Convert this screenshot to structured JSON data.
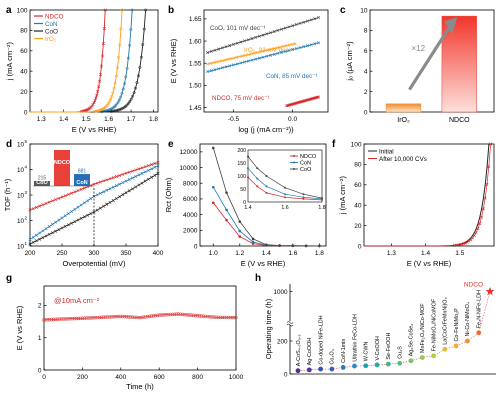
{
  "panels": {
    "a": {
      "letter": "a"
    },
    "b": {
      "letter": "b"
    },
    "c": {
      "letter": "c"
    },
    "d": {
      "letter": "d"
    },
    "e": {
      "letter": "e"
    },
    "f": {
      "letter": "f"
    },
    "g": {
      "letter": "g"
    },
    "h": {
      "letter": "h"
    }
  },
  "chart_data": [
    {
      "id": "a",
      "type": "line",
      "xlabel": "E (V vs RHE)",
      "ylabel": "j (mA cm⁻²)",
      "xlim": [
        1.25,
        1.82
      ],
      "ylim": [
        0,
        100
      ],
      "xticks": [
        1.3,
        1.4,
        1.5,
        1.6,
        1.7,
        1.8
      ],
      "yticks": [
        0,
        20,
        40,
        60,
        80,
        100
      ],
      "legend": {
        "position": "top-left",
        "entries": [
          "NDCO",
          "CoN",
          "CoO",
          "IrO₂"
        ]
      },
      "series": [
        {
          "name": "NDCO",
          "color": "#d62728",
          "onset": 1.44,
          "x100": 1.585
        },
        {
          "name": "CoN",
          "color": "#1f77b4",
          "onset": 1.52,
          "x100": 1.705
        },
        {
          "name": "CoO",
          "color": "#222222",
          "onset": 1.55,
          "x100": 1.765
        },
        {
          "name": "IrO₂",
          "color": "#ff9f1c",
          "onset": 1.49,
          "x100": 1.66
        }
      ]
    },
    {
      "id": "b",
      "type": "line",
      "xlabel": "log (j (mA cm⁻²))",
      "ylabel": "E (V vs RHE)",
      "xlim": [
        -0.75,
        0.3
      ],
      "ylim": [
        1.44,
        1.67
      ],
      "xticks": [
        -0.5,
        0.0
      ],
      "yticks": [
        1.45,
        1.5,
        1.55,
        1.6,
        1.65
      ],
      "series": [
        {
          "name": "CoO",
          "label": "CoO, 101 mV dec⁻¹",
          "color": "#444444",
          "x": [
            -0.72,
            0.22
          ],
          "y": [
            1.574,
            1.653
          ]
        },
        {
          "name": "IrO₂",
          "label": "IrO₂, 93 mV dec⁻¹",
          "color": "#ff9f1c",
          "x": [
            -0.72,
            0.02
          ],
          "y": [
            1.548,
            1.594
          ]
        },
        {
          "name": "CoN",
          "label": "CoN, 85 mV dec⁻¹",
          "color": "#1f77b4",
          "x": [
            -0.72,
            0.22
          ],
          "y": [
            1.531,
            1.596
          ]
        },
        {
          "name": "NDCO",
          "label": "NDCO, 75 mV dec⁻¹",
          "color": "#d62728",
          "x": [
            -0.05,
            0.22
          ],
          "y": [
            1.454,
            1.474
          ]
        }
      ]
    },
    {
      "id": "c",
      "type": "bar",
      "ylabel": "j₀ (μA cm⁻²)",
      "categories": [
        "IrO₂",
        "NDCO"
      ],
      "values": [
        0.8,
        9.4
      ],
      "ylim": [
        0,
        10
      ],
      "yticks": [
        0,
        2,
        4,
        6,
        8,
        10
      ],
      "annotation": "×12"
    },
    {
      "id": "d",
      "type": "line",
      "xlabel": "Overpotential (mV)",
      "ylabel": "TOF (h⁻¹)",
      "xlim": [
        200,
        400
      ],
      "xticks": [
        200,
        250,
        300,
        350,
        400
      ],
      "yscale": "log",
      "ylim": [
        10,
        100000
      ],
      "ytick_exponents": [
        "1",
        "2",
        "3",
        "4",
        "5"
      ],
      "marker_x": 300,
      "inset": {
        "categories": [
          "CoO",
          "NDCO",
          "CoN"
        ],
        "values": [
          215,
          2654,
          881
        ],
        "colors": [
          "#5a5a5a",
          "#e8413a",
          "#2a6ebb"
        ]
      },
      "series": [
        {
          "name": "NDCO",
          "color": "#d62728",
          "x": [
            200,
            300,
            400
          ],
          "y": [
            260,
            2654,
            19000
          ]
        },
        {
          "name": "CoN",
          "color": "#1f77b4",
          "x": [
            200,
            300,
            400
          ],
          "y": [
            18,
            881,
            14000
          ]
        },
        {
          "name": "CoO",
          "color": "#222222",
          "x": [
            200,
            300,
            400
          ],
          "y": [
            12,
            215,
            7000
          ]
        }
      ]
    },
    {
      "id": "e",
      "type": "line",
      "xlabel": "E (V vs RHE)",
      "ylabel": "Rct (Ohm)",
      "xlim": [
        0.9,
        1.85
      ],
      "ylim": [
        0,
        13000
      ],
      "xticks": [
        1.0,
        1.2,
        1.4,
        1.6,
        1.8
      ],
      "yticks": [
        0,
        2000,
        4000,
        6000,
        8000,
        10000,
        12000
      ],
      "legend": {
        "position": "inset",
        "entries": [
          "NDCO",
          "CoN",
          "CoO"
        ]
      },
      "series": [
        {
          "name": "NDCO",
          "color": "#d62728",
          "x": [
            1.0,
            1.1,
            1.2,
            1.3,
            1.4,
            1.5,
            1.6,
            1.7,
            1.8
          ],
          "y": [
            5500,
            3300,
            1200,
            300,
            60,
            25,
            15,
            10,
            8
          ]
        },
        {
          "name": "CoN",
          "color": "#1f77b4",
          "x": [
            1.0,
            1.1,
            1.2,
            1.3,
            1.4,
            1.5,
            1.6,
            1.7,
            1.8
          ],
          "y": [
            7500,
            4600,
            1900,
            500,
            110,
            45,
            25,
            15,
            10
          ]
        },
        {
          "name": "CoO",
          "color": "#444444",
          "x": [
            1.0,
            1.1,
            1.2,
            1.3,
            1.4,
            1.5,
            1.6,
            1.7,
            1.8
          ],
          "y": [
            12500,
            6800,
            3100,
            900,
            160,
            70,
            35,
            20,
            12
          ]
        }
      ],
      "inset": {
        "xlim": [
          1.4,
          1.8
        ],
        "ylim": [
          0,
          200
        ],
        "xticks": [
          1.4,
          1.6,
          1.8
        ],
        "yticks": [
          0,
          50,
          100,
          150,
          200
        ],
        "series": [
          {
            "name": "NDCO",
            "color": "#d62728",
            "x": [
              1.4,
              1.45,
              1.5,
              1.6,
              1.7,
              1.8
            ],
            "y": [
              95,
              60,
              35,
              18,
              12,
              8
            ]
          },
          {
            "name": "CoN",
            "color": "#1f77b4",
            "x": [
              1.4,
              1.45,
              1.5,
              1.6,
              1.7,
              1.8
            ],
            "y": [
              130,
              90,
              60,
              30,
              18,
              12
            ]
          },
          {
            "name": "CoO",
            "color": "#444444",
            "x": [
              1.4,
              1.45,
              1.5,
              1.6,
              1.7,
              1.8
            ],
            "y": [
              175,
              130,
              100,
              55,
              30,
              15
            ]
          }
        ]
      }
    },
    {
      "id": "f",
      "type": "line",
      "xlabel": "E (V vs RHE)",
      "ylabel": "j (mA cm⁻²)",
      "xlim": [
        1.22,
        1.6
      ],
      "ylim": [
        0,
        100
      ],
      "xticks": [
        1.3,
        1.4,
        1.5
      ],
      "yticks": [
        0,
        20,
        40,
        60,
        80,
        100
      ],
      "legend": {
        "position": "top-left",
        "entries": [
          "Initial",
          "After 10,000 CVs"
        ]
      },
      "series": [
        {
          "name": "Initial",
          "color": "#222222",
          "onset": 1.44,
          "x100": 1.585
        },
        {
          "name": "After 10,000 CVs",
          "color": "#d62728",
          "onset": 1.445,
          "x100": 1.59
        }
      ]
    },
    {
      "id": "g",
      "type": "line",
      "xlabel": "Time (h)",
      "ylabel": "E (V vs RHE)",
      "xlim": [
        0,
        1000
      ],
      "ylim": [
        0,
        2.6
      ],
      "xticks": [
        0,
        200,
        400,
        600,
        800,
        1000
      ],
      "yticks": [
        0,
        1,
        2
      ],
      "annotation": "@10mA cm⁻²",
      "series": [
        {
          "name": "stability",
          "color": "#d62728",
          "x": [
            0,
            100,
            200,
            300,
            400,
            500,
            600,
            700,
            800,
            900,
            1000
          ],
          "y": [
            1.55,
            1.58,
            1.6,
            1.63,
            1.66,
            1.62,
            1.7,
            1.73,
            1.68,
            1.63,
            1.62
          ]
        }
      ]
    },
    {
      "id": "h",
      "type": "scatter",
      "ylabel": "Operating time (h)",
      "ylim": [
        0,
        1050
      ],
      "yticks": [
        0,
        200,
        400,
        600,
        800,
        1000
      ],
      "star_label": "NDCO",
      "categories": [
        "A-CoS₄.₆O₀.₆",
        "Ag-CoOOH",
        "Co-doped NiFe-LDH",
        "Co₃O₄",
        "CoN-1min",
        "Ultrathin FeCo-LDH",
        "W-CWN",
        "V-CoOOH",
        "Se-FeOOH",
        "Cu₂S",
        "Ag₂Se-CoSe₂",
        "MnFe₂O₄/NiCo-MOF",
        "Fe-NiMoO₄/NiCoMOF",
        "La(CoCrFeMnNi)O₃",
        "Co-FeNiMo₂P",
        "Ni-Co-NiMoO₄",
        "Fe₃N-NiFe-LDH",
        "NDCO"
      ],
      "values": [
        20,
        25,
        30,
        30,
        40,
        48,
        50,
        55,
        60,
        65,
        80,
        100,
        110,
        150,
        170,
        200,
        250,
        1000
      ],
      "colors": [
        "#5b2a86",
        "#4a3aa0",
        "#3a4fb0",
        "#3060b8",
        "#2a78c0",
        "#1f8fc0",
        "#1fa2b0",
        "#27ae9a",
        "#3db884",
        "#58c070",
        "#79c45c",
        "#9cc84b",
        "#bdca3e",
        "#d8c436",
        "#e9b032",
        "#ef9430",
        "#eb6e34",
        "#e6312f"
      ]
    }
  ]
}
